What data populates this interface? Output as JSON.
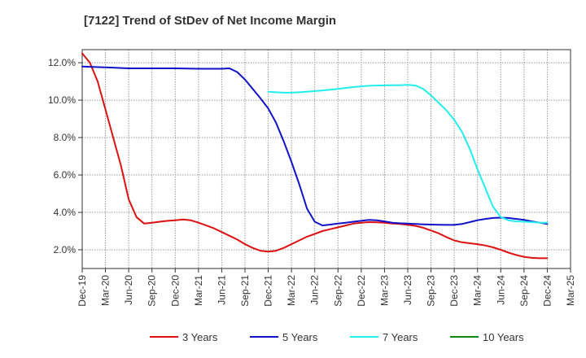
{
  "chart_data": {
    "type": "line",
    "title": "[7122]  Trend of StDev of Net Income Margin",
    "xlabel": "",
    "ylabel": "",
    "x_tick_labels": [
      "Dec-19",
      "Mar-20",
      "Jun-20",
      "Sep-20",
      "Dec-20",
      "Mar-21",
      "Jun-21",
      "Sep-21",
      "Dec-21",
      "Mar-22",
      "Jun-22",
      "Sep-22",
      "Dec-22",
      "Mar-23",
      "Jun-23",
      "Sep-23",
      "Dec-23",
      "Mar-24",
      "Jun-24",
      "Sep-24",
      "Dec-24",
      "Mar-25"
    ],
    "y_tick_labels": [
      "2.0%",
      "4.0%",
      "6.0%",
      "8.0%",
      "10.0%",
      "12.0%"
    ],
    "y_ticks": [
      2,
      4,
      6,
      8,
      10,
      12
    ],
    "ylim": [
      1.0,
      12.7
    ],
    "grid": true,
    "legend_position": "bottom",
    "series": [
      {
        "name": "3 Years",
        "color": "#dd1111",
        "points": [
          [
            "Dec-19",
            12.5
          ],
          [
            "Jan-20",
            12.0
          ],
          [
            "Feb-20",
            11.0
          ],
          [
            "Mar-20",
            9.5
          ],
          [
            "Apr-20",
            8.0
          ],
          [
            "May-20",
            6.5
          ],
          [
            "Jun-20",
            4.7
          ],
          [
            "Jul-20",
            3.75
          ],
          [
            "Aug-20",
            3.4
          ],
          [
            "Sep-20",
            3.45
          ],
          [
            "Oct-20",
            3.5
          ],
          [
            "Nov-20",
            3.55
          ],
          [
            "Dec-20",
            3.58
          ],
          [
            "Jan-21",
            3.62
          ],
          [
            "Feb-21",
            3.58
          ],
          [
            "Mar-21",
            3.45
          ],
          [
            "Apr-21",
            3.3
          ],
          [
            "May-21",
            3.15
          ],
          [
            "Jun-21",
            2.95
          ],
          [
            "Jul-21",
            2.75
          ],
          [
            "Aug-21",
            2.55
          ],
          [
            "Sep-21",
            2.3
          ],
          [
            "Oct-21",
            2.1
          ],
          [
            "Nov-21",
            1.95
          ],
          [
            "Dec-21",
            1.9
          ],
          [
            "Jan-22",
            1.95
          ],
          [
            "Feb-22",
            2.1
          ],
          [
            "Mar-22",
            2.3
          ],
          [
            "Apr-22",
            2.5
          ],
          [
            "May-22",
            2.7
          ],
          [
            "Jun-22",
            2.85
          ],
          [
            "Jul-22",
            3.0
          ],
          [
            "Aug-22",
            3.1
          ],
          [
            "Sep-22",
            3.2
          ],
          [
            "Oct-22",
            3.3
          ],
          [
            "Nov-22",
            3.4
          ],
          [
            "Dec-22",
            3.45
          ],
          [
            "Jan-23",
            3.48
          ],
          [
            "Feb-23",
            3.47
          ],
          [
            "Mar-23",
            3.45
          ],
          [
            "Apr-23",
            3.4
          ],
          [
            "May-23",
            3.38
          ],
          [
            "Jun-23",
            3.33
          ],
          [
            "Jul-23",
            3.28
          ],
          [
            "Aug-23",
            3.18
          ],
          [
            "Sep-23",
            3.03
          ],
          [
            "Oct-23",
            2.88
          ],
          [
            "Nov-23",
            2.68
          ],
          [
            "Dec-23",
            2.5
          ],
          [
            "Jan-24",
            2.4
          ],
          [
            "Feb-24",
            2.35
          ],
          [
            "Mar-24",
            2.3
          ],
          [
            "Apr-24",
            2.23
          ],
          [
            "May-24",
            2.13
          ],
          [
            "Jun-24",
            2.0
          ],
          [
            "Jul-24",
            1.85
          ],
          [
            "Aug-24",
            1.72
          ],
          [
            "Sep-24",
            1.62
          ],
          [
            "Oct-24",
            1.57
          ],
          [
            "Nov-24",
            1.55
          ],
          [
            "Dec-24",
            1.55
          ]
        ]
      },
      {
        "name": "5 Years",
        "color": "#1111cc",
        "points": [
          [
            "Dec-19",
            11.8
          ],
          [
            "Mar-20",
            11.75
          ],
          [
            "Jun-20",
            11.7
          ],
          [
            "Sep-20",
            11.7
          ],
          [
            "Dec-20",
            11.7
          ],
          [
            "Mar-21",
            11.68
          ],
          [
            "Jun-21",
            11.68
          ],
          [
            "Jul-21",
            11.7
          ],
          [
            "Aug-21",
            11.5
          ],
          [
            "Sep-21",
            11.1
          ],
          [
            "Oct-21",
            10.6
          ],
          [
            "Nov-21",
            10.1
          ],
          [
            "Dec-21",
            9.55
          ],
          [
            "Jan-22",
            8.8
          ],
          [
            "Feb-22",
            7.8
          ],
          [
            "Mar-22",
            6.7
          ],
          [
            "Apr-22",
            5.5
          ],
          [
            "May-22",
            4.2
          ],
          [
            "Jun-22",
            3.5
          ],
          [
            "Jul-22",
            3.3
          ],
          [
            "Aug-22",
            3.35
          ],
          [
            "Sep-22",
            3.4
          ],
          [
            "Oct-22",
            3.45
          ],
          [
            "Nov-22",
            3.5
          ],
          [
            "Dec-22",
            3.55
          ],
          [
            "Jan-23",
            3.6
          ],
          [
            "Feb-23",
            3.58
          ],
          [
            "Mar-23",
            3.52
          ],
          [
            "Apr-23",
            3.45
          ],
          [
            "May-23",
            3.42
          ],
          [
            "Jun-23",
            3.4
          ],
          [
            "Jul-23",
            3.38
          ],
          [
            "Aug-23",
            3.36
          ],
          [
            "Sep-23",
            3.35
          ],
          [
            "Oct-23",
            3.34
          ],
          [
            "Nov-23",
            3.33
          ],
          [
            "Dec-23",
            3.33
          ],
          [
            "Jan-24",
            3.38
          ],
          [
            "Feb-24",
            3.48
          ],
          [
            "Mar-24",
            3.58
          ],
          [
            "Apr-24",
            3.65
          ],
          [
            "May-24",
            3.7
          ],
          [
            "Jun-24",
            3.72
          ],
          [
            "Jul-24",
            3.7
          ],
          [
            "Aug-24",
            3.65
          ],
          [
            "Sep-24",
            3.6
          ],
          [
            "Oct-24",
            3.52
          ],
          [
            "Nov-24",
            3.45
          ],
          [
            "Dec-24",
            3.38
          ]
        ]
      },
      {
        "name": "7 Years",
        "color": "#22eeee",
        "points": [
          [
            "Dec-21",
            10.45
          ],
          [
            "Jan-22",
            10.42
          ],
          [
            "Feb-22",
            10.4
          ],
          [
            "Mar-22",
            10.4
          ],
          [
            "Apr-22",
            10.42
          ],
          [
            "May-22",
            10.45
          ],
          [
            "Jun-22",
            10.48
          ],
          [
            "Jul-22",
            10.52
          ],
          [
            "Aug-22",
            10.56
          ],
          [
            "Sep-22",
            10.6
          ],
          [
            "Oct-22",
            10.65
          ],
          [
            "Nov-22",
            10.7
          ],
          [
            "Dec-22",
            10.74
          ],
          [
            "Jan-23",
            10.77
          ],
          [
            "Feb-23",
            10.78
          ],
          [
            "Mar-23",
            10.79
          ],
          [
            "Apr-23",
            10.8
          ],
          [
            "May-23",
            10.8
          ],
          [
            "Jun-23",
            10.82
          ],
          [
            "Jul-23",
            10.78
          ],
          [
            "Aug-23",
            10.6
          ],
          [
            "Sep-23",
            10.25
          ],
          [
            "Oct-23",
            9.85
          ],
          [
            "Nov-23",
            9.45
          ],
          [
            "Dec-23",
            8.95
          ],
          [
            "Jan-24",
            8.3
          ],
          [
            "Feb-24",
            7.4
          ],
          [
            "Mar-24",
            6.3
          ],
          [
            "Apr-24",
            5.3
          ],
          [
            "May-24",
            4.3
          ],
          [
            "Jun-24",
            3.75
          ],
          [
            "Jul-24",
            3.58
          ],
          [
            "Aug-24",
            3.52
          ],
          [
            "Sep-24",
            3.5
          ],
          [
            "Oct-24",
            3.48
          ],
          [
            "Nov-24",
            3.45
          ],
          [
            "Dec-24",
            3.45
          ]
        ]
      },
      {
        "name": "10 Years",
        "color": "#118811",
        "points": []
      }
    ]
  }
}
